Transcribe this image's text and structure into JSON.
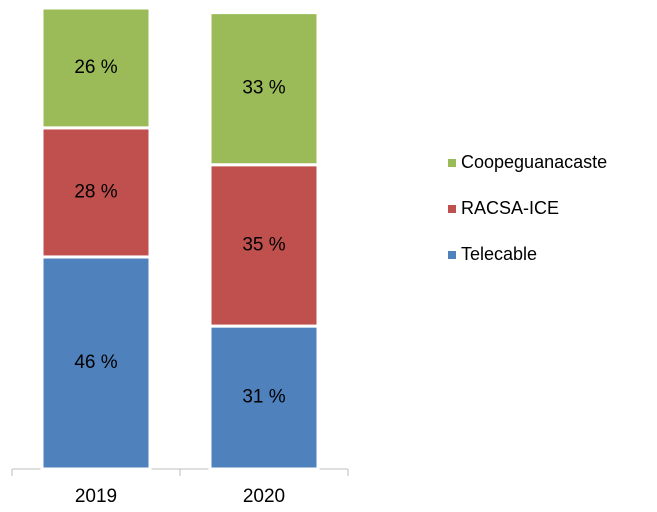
{
  "chart_data": {
    "type": "stacked_bar",
    "categories": [
      "2019",
      "2020"
    ],
    "series": [
      {
        "name": "Telecable",
        "color": "#4f81bd",
        "values": [
          46,
          31
        ],
        "value_labels": [
          "46 %",
          "31 %"
        ]
      },
      {
        "name": "RACSA-ICE",
        "color": "#c0504d",
        "values": [
          28,
          35
        ],
        "value_labels": [
          "28 %",
          "35 %"
        ]
      },
      {
        "name": "Coopeguanacaste",
        "color": "#9bbb59",
        "values": [
          26,
          33
        ],
        "value_labels": [
          "26 %",
          "33 %"
        ]
      }
    ],
    "ylim": [
      0,
      100
    ],
    "legend": "right"
  }
}
